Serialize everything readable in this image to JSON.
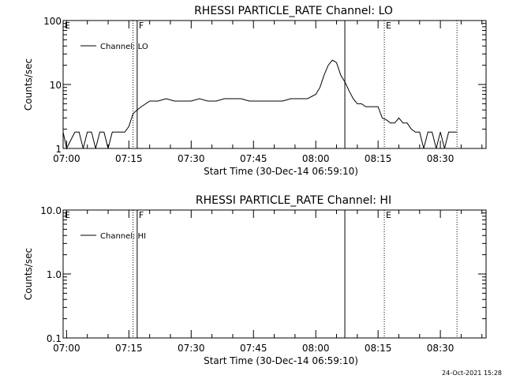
{
  "chart_data": [
    {
      "type": "line",
      "title": "RHESSI PARTICLE_RATE Channel: LO",
      "xlabel": "Start Time (30-Dec-14 06:59:10)",
      "ylabel": "Counts/sec",
      "yscale": "log",
      "ylim": [
        1,
        100
      ],
      "xlim": [
        "06:59:10",
        "08:41:00"
      ],
      "xticks": [
        "07:00",
        "07:15",
        "07:30",
        "07:45",
        "08:00",
        "08:15",
        "08:30"
      ],
      "yticks": [
        "1",
        "10",
        "100"
      ],
      "legend": {
        "label": "Channel: LO",
        "position": "top-left"
      },
      "vlines": [
        {
          "time": "07:16:00",
          "style": "dotted",
          "label": ""
        },
        {
          "time": "07:17:00",
          "style": "solid",
          "label": "F"
        },
        {
          "time": "08:07:00",
          "style": "solid",
          "label": ""
        },
        {
          "time": "08:16:30",
          "style": "dotted",
          "label": "E"
        },
        {
          "time": "08:34:00",
          "style": "dotted",
          "label": ""
        }
      ],
      "corner_label": "E",
      "series": [
        {
          "name": "Channel: LO",
          "x": [
            "06:59:10",
            "07:00:00",
            "07:02:00",
            "07:03:00",
            "07:04:00",
            "07:05:00",
            "07:06:00",
            "07:07:00",
            "07:08:00",
            "07:09:00",
            "07:10:00",
            "07:11:00",
            "07:12:00",
            "07:13:00",
            "07:14:00",
            "07:15:00",
            "07:16:00",
            "07:17:00",
            "07:18:00",
            "07:20:00",
            "07:22:00",
            "07:24:00",
            "07:26:00",
            "07:28:00",
            "07:30:00",
            "07:32:00",
            "07:34:00",
            "07:36:00",
            "07:38:00",
            "07:40:00",
            "07:42:00",
            "07:44:00",
            "07:46:00",
            "07:48:00",
            "07:50:00",
            "07:52:00",
            "07:54:00",
            "07:56:00",
            "07:58:00",
            "08:00:00",
            "08:01:00",
            "08:02:00",
            "08:03:00",
            "08:04:00",
            "08:05:00",
            "08:06:00",
            "08:07:00",
            "08:08:00",
            "08:09:00",
            "08:10:00",
            "08:11:00",
            "08:12:00",
            "08:13:00",
            "08:14:00",
            "08:15:00",
            "08:16:00",
            "08:17:00",
            "08:18:00",
            "08:19:00",
            "08:20:00",
            "08:21:00",
            "08:22:00",
            "08:23:00",
            "08:24:00",
            "08:25:00",
            "08:26:00",
            "08:27:00",
            "08:28:00",
            "08:29:00",
            "08:30:00",
            "08:31:00",
            "08:32:00",
            "08:33:00",
            "08:34:00"
          ],
          "y": [
            1.8,
            1.0,
            1.8,
            1.8,
            1.0,
            1.8,
            1.8,
            1.0,
            1.8,
            1.8,
            1.0,
            1.8,
            1.8,
            1.8,
            1.8,
            2.2,
            3.5,
            4.0,
            4.5,
            5.5,
            5.5,
            6.0,
            5.5,
            5.5,
            5.5,
            6.0,
            5.5,
            5.5,
            6.0,
            6.0,
            6.0,
            5.5,
            5.5,
            5.5,
            5.5,
            5.5,
            6.0,
            6.0,
            6.0,
            7.0,
            9.0,
            14.0,
            20.0,
            24.0,
            22.0,
            14.0,
            11.0,
            8.0,
            6.0,
            5.0,
            5.0,
            4.5,
            4.5,
            4.5,
            4.5,
            3.0,
            2.8,
            2.5,
            2.5,
            3.0,
            2.5,
            2.5,
            2.0,
            1.8,
            1.8,
            1.0,
            1.8,
            1.8,
            1.0,
            1.8,
            1.0,
            1.8,
            1.8,
            1.8
          ]
        }
      ]
    },
    {
      "type": "line",
      "title": "RHESSI PARTICLE_RATE Channel: HI",
      "xlabel": "Start Time (30-Dec-14 06:59:10)",
      "ylabel": "Counts/sec",
      "yscale": "log",
      "ylim": [
        0.1,
        10
      ],
      "xlim": [
        "06:59:10",
        "08:41:00"
      ],
      "xticks": [
        "07:00",
        "07:15",
        "07:30",
        "07:45",
        "08:00",
        "08:15",
        "08:30"
      ],
      "yticks": [
        "0.1",
        "1.0",
        "10.0"
      ],
      "legend": {
        "label": "Channel: HI",
        "position": "top-left"
      },
      "vlines": [
        {
          "time": "07:16:00",
          "style": "dotted",
          "label": ""
        },
        {
          "time": "07:17:00",
          "style": "solid",
          "label": "F"
        },
        {
          "time": "08:07:00",
          "style": "solid",
          "label": ""
        },
        {
          "time": "08:16:30",
          "style": "dotted",
          "label": "E"
        },
        {
          "time": "08:34:00",
          "style": "dotted",
          "label": ""
        }
      ],
      "corner_label": "E",
      "series": [
        {
          "name": "Channel: HI",
          "x": [],
          "y": []
        }
      ]
    }
  ],
  "footer": {
    "timestamp": "24-Oct-2021 15:28"
  }
}
